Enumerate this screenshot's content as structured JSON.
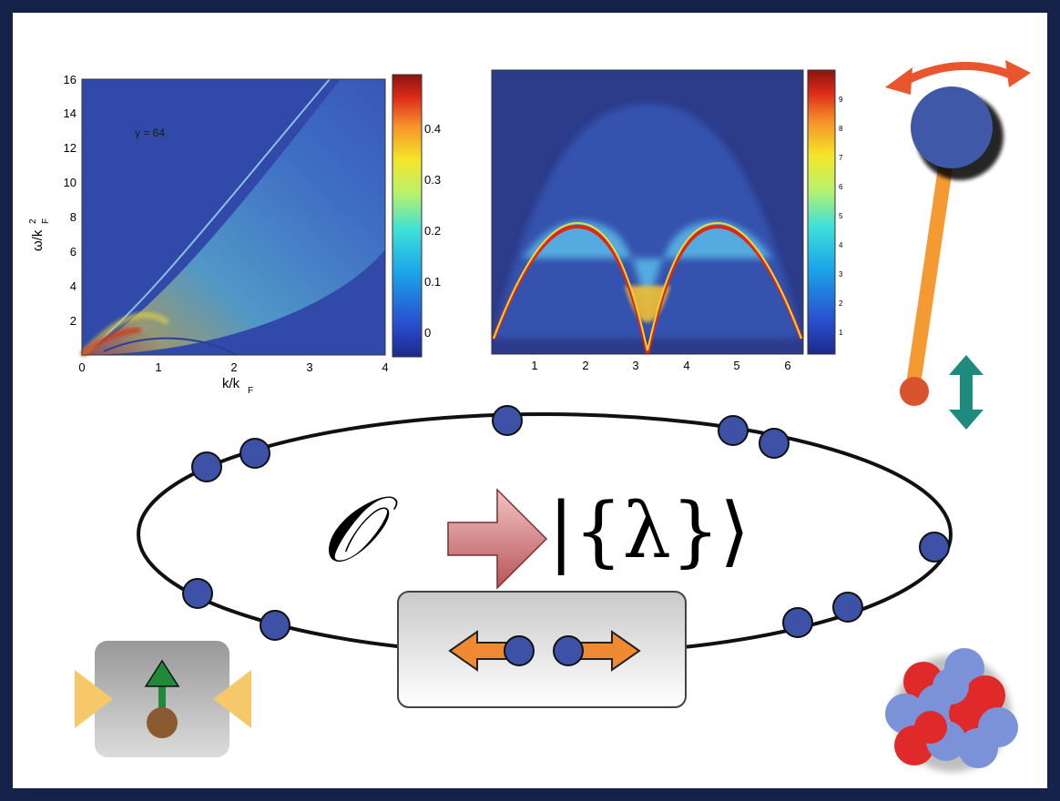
{
  "plot_left": {
    "annotation": "γ = 64",
    "ylabel": "ω/k",
    "ylabel_sup": "2",
    "ylabel_sub": "F",
    "xlabel": "k/k",
    "xlabel_sub": "F",
    "xticks": [
      "0",
      "1",
      "2",
      "3",
      "4"
    ],
    "yticks": [
      "2",
      "4",
      "6",
      "8",
      "10",
      "12",
      "14",
      "16"
    ],
    "colorbar_ticks": [
      "0.4",
      "0.3",
      "0.2",
      "0.1",
      "0"
    ]
  },
  "plot_right": {
    "xticks": [
      "1",
      "2",
      "3",
      "4",
      "5",
      "6"
    ],
    "colorbar_ticks": [
      "9",
      "8",
      "7",
      "6",
      "5",
      "4",
      "3",
      "2",
      "1"
    ]
  },
  "equation": {
    "operator": "𝒪",
    "ket": "|{λ}⟩"
  },
  "colors": {
    "background": "#15234a",
    "dot": "#3d52a6",
    "arrow_orange": "#f08a32",
    "pendulum_bob": "#3f58a8",
    "pendulum_rod": "#f59a32",
    "teal_arrow": "#1f8a7e",
    "red_arrow": "#e9552d"
  }
}
